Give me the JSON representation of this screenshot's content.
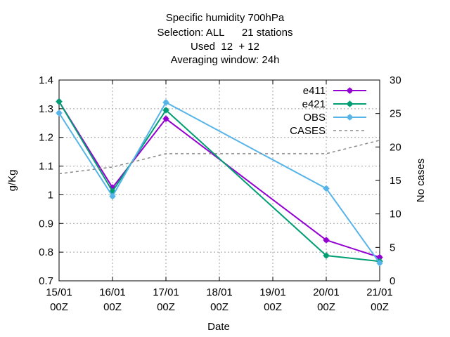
{
  "chart_data": {
    "type": "line",
    "title_lines": [
      "Specific humidity 700hPa",
      "Selection: ALL      21 stations",
      "Used  12  + 12",
      "Averaging window: 24h"
    ],
    "xlabel": "Date",
    "ylabel": "g/Kg",
    "y2label": "No cases",
    "categories": [
      "15/01\n00Z",
      "16/01\n00Z",
      "17/01\n00Z",
      "18/01\n00Z",
      "19/01\n00Z",
      "20/01\n00Z",
      "21/01\n00Z"
    ],
    "x_index": [
      0,
      1,
      2,
      3,
      4,
      5,
      6
    ],
    "ylim": [
      0.7,
      1.4
    ],
    "yticks": [
      "0.7",
      "0.8",
      "0.9",
      "1",
      "1.1",
      "1.2",
      "1.3",
      "1.4"
    ],
    "y2lim": [
      0,
      30
    ],
    "y2ticks": [
      "0",
      "5",
      "10",
      "15",
      "20",
      "25",
      "30"
    ],
    "grid": true,
    "legend_position": "top-right",
    "series": [
      {
        "name": "e411",
        "axis": "y",
        "color": "#9400d3",
        "style": "line-points",
        "x": [
          0,
          1,
          2,
          5,
          6
        ],
        "values": [
          1.325,
          1.025,
          1.265,
          0.842,
          0.782
        ]
      },
      {
        "name": "e421",
        "axis": "y",
        "color": "#009e73",
        "style": "line-points",
        "x": [
          0,
          1,
          2,
          5,
          6
        ],
        "values": [
          1.325,
          1.012,
          1.295,
          0.788,
          0.768
        ]
      },
      {
        "name": "OBS",
        "axis": "y",
        "color": "#56b4e9",
        "style": "line-points",
        "x": [
          0,
          1,
          2,
          5,
          6
        ],
        "values": [
          1.285,
          0.995,
          1.322,
          1.022,
          0.762
        ]
      },
      {
        "name": "CASES",
        "axis": "y2",
        "color": "#888888",
        "style": "dashed",
        "x": [
          0,
          1,
          2,
          5,
          6
        ],
        "values": [
          16,
          17,
          19,
          19,
          21
        ]
      }
    ]
  }
}
